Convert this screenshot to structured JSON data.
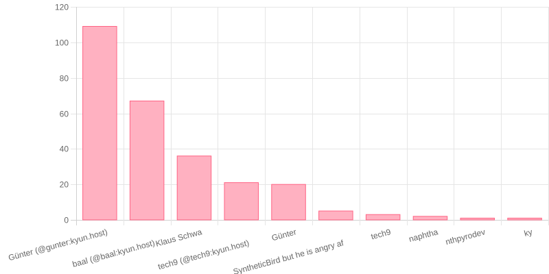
{
  "chart_data": {
    "type": "bar",
    "title": "",
    "xlabel": "",
    "ylabel": "",
    "ylim": [
      0,
      120
    ],
    "yticks": [
      0,
      20,
      40,
      60,
      80,
      100,
      120
    ],
    "grid": true,
    "legend": null,
    "categories": [
      "Günter (@gunter:kyun.host)",
      "baal (@baal:kyun.host)",
      "Klaus Schwa",
      "tech9 (@tech9:kyun.host)",
      "Günter",
      "SyntheticBird but he is angry af",
      "tech9",
      "naphtha",
      "nthpyrodev",
      "ky"
    ],
    "values": [
      109,
      67,
      36,
      21,
      20,
      5,
      3,
      2,
      1,
      1
    ],
    "colors": {
      "bar_fill": "#ffb1c1",
      "bar_border": "#ff6384"
    },
    "label_rotation_deg": -15
  }
}
